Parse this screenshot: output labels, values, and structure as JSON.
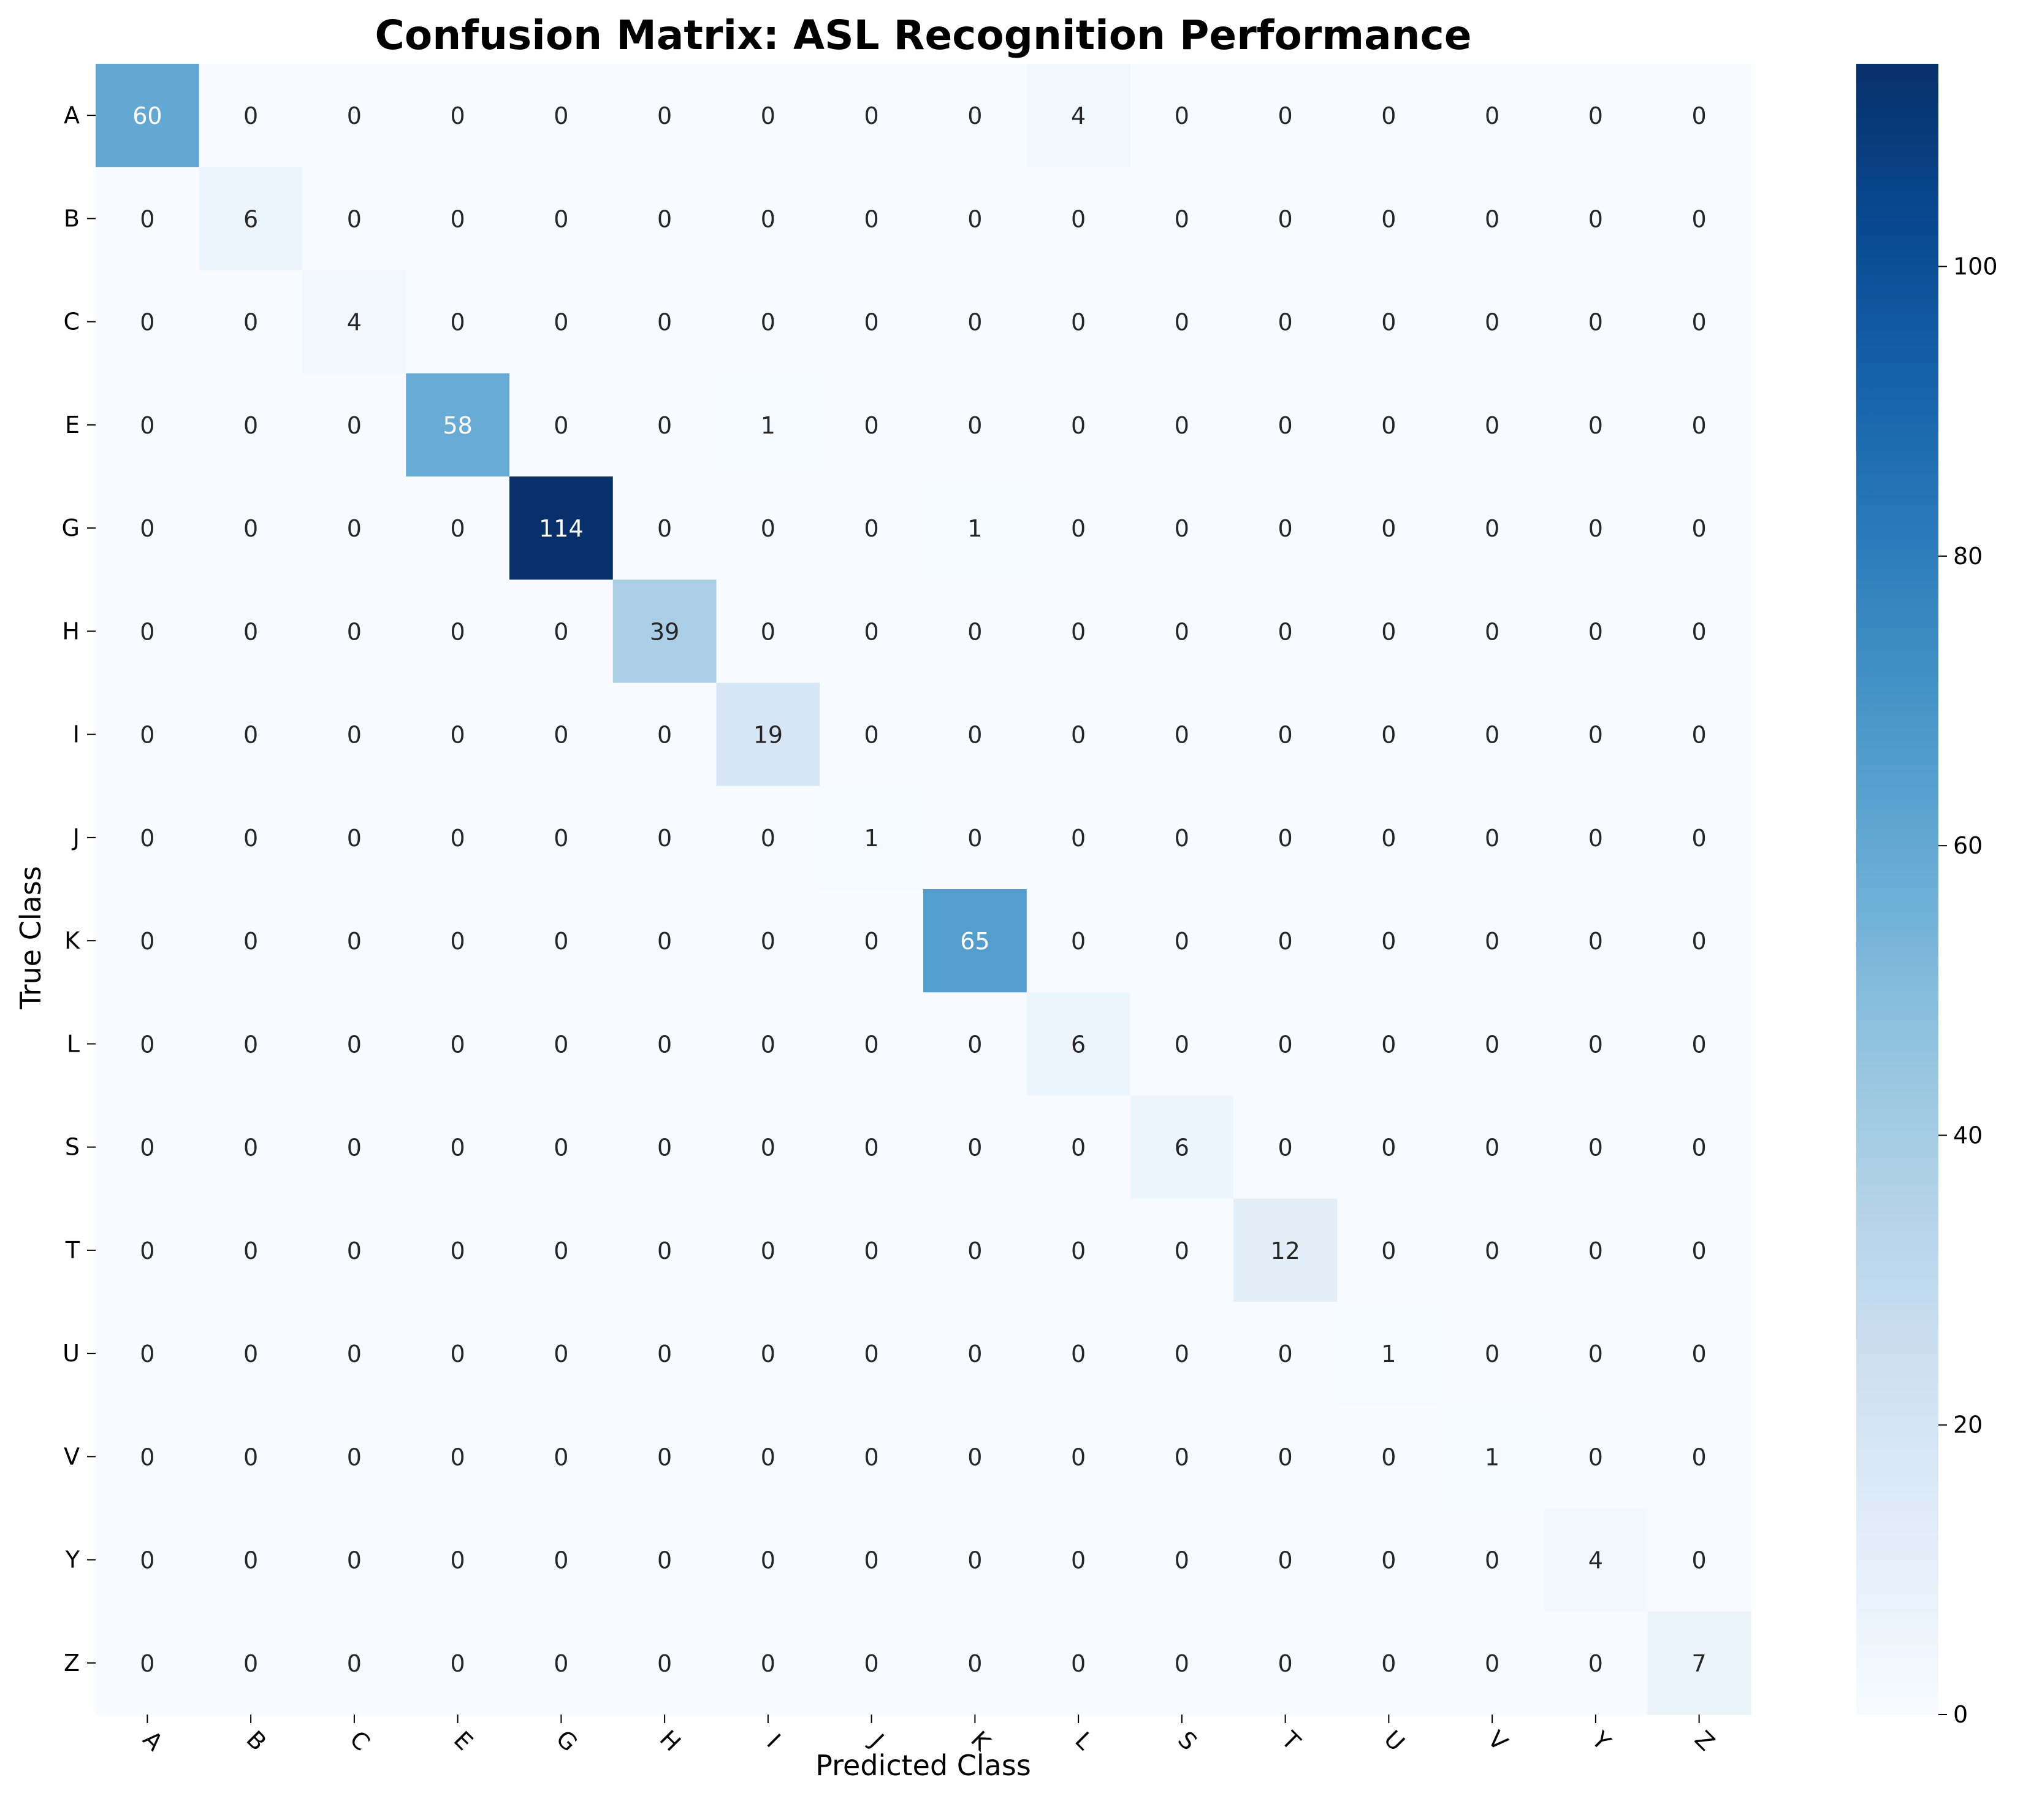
{
  "chart_data": {
    "type": "heatmap",
    "title": "Confusion Matrix: ASL Recognition Performance",
    "xlabel": "Predicted Class",
    "ylabel": "True Class",
    "categories": [
      "A",
      "B",
      "C",
      "E",
      "G",
      "H",
      "I",
      "J",
      "K",
      "L",
      "S",
      "T",
      "U",
      "V",
      "Y",
      "Z"
    ],
    "matrix": [
      [
        60,
        0,
        0,
        0,
        0,
        0,
        0,
        0,
        0,
        4,
        0,
        0,
        0,
        0,
        0,
        0
      ],
      [
        0,
        6,
        0,
        0,
        0,
        0,
        0,
        0,
        0,
        0,
        0,
        0,
        0,
        0,
        0,
        0
      ],
      [
        0,
        0,
        4,
        0,
        0,
        0,
        0,
        0,
        0,
        0,
        0,
        0,
        0,
        0,
        0,
        0
      ],
      [
        0,
        0,
        0,
        58,
        0,
        0,
        1,
        0,
        0,
        0,
        0,
        0,
        0,
        0,
        0,
        0
      ],
      [
        0,
        0,
        0,
        0,
        114,
        0,
        0,
        0,
        1,
        0,
        0,
        0,
        0,
        0,
        0,
        0
      ],
      [
        0,
        0,
        0,
        0,
        0,
        39,
        0,
        0,
        0,
        0,
        0,
        0,
        0,
        0,
        0,
        0
      ],
      [
        0,
        0,
        0,
        0,
        0,
        0,
        19,
        0,
        0,
        0,
        0,
        0,
        0,
        0,
        0,
        0
      ],
      [
        0,
        0,
        0,
        0,
        0,
        0,
        0,
        1,
        0,
        0,
        0,
        0,
        0,
        0,
        0,
        0
      ],
      [
        0,
        0,
        0,
        0,
        0,
        0,
        0,
        0,
        65,
        0,
        0,
        0,
        0,
        0,
        0,
        0
      ],
      [
        0,
        0,
        0,
        0,
        0,
        0,
        0,
        0,
        0,
        6,
        0,
        0,
        0,
        0,
        0,
        0
      ],
      [
        0,
        0,
        0,
        0,
        0,
        0,
        0,
        0,
        0,
        0,
        6,
        0,
        0,
        0,
        0,
        0
      ],
      [
        0,
        0,
        0,
        0,
        0,
        0,
        0,
        0,
        0,
        0,
        0,
        12,
        0,
        0,
        0,
        0
      ],
      [
        0,
        0,
        0,
        0,
        0,
        0,
        0,
        0,
        0,
        0,
        0,
        0,
        1,
        0,
        0,
        0
      ],
      [
        0,
        0,
        0,
        0,
        0,
        0,
        0,
        0,
        0,
        0,
        0,
        0,
        0,
        1,
        0,
        0
      ],
      [
        0,
        0,
        0,
        0,
        0,
        0,
        0,
        0,
        0,
        0,
        0,
        0,
        0,
        0,
        4,
        0
      ],
      [
        0,
        0,
        0,
        0,
        0,
        0,
        0,
        0,
        0,
        0,
        0,
        0,
        0,
        0,
        0,
        7
      ]
    ],
    "colorbar": {
      "min": 0,
      "max": 114,
      "ticks": [
        0,
        20,
        40,
        60,
        80,
        100
      ],
      "colormap": "Blues"
    },
    "xtick_rotation": 45
  }
}
